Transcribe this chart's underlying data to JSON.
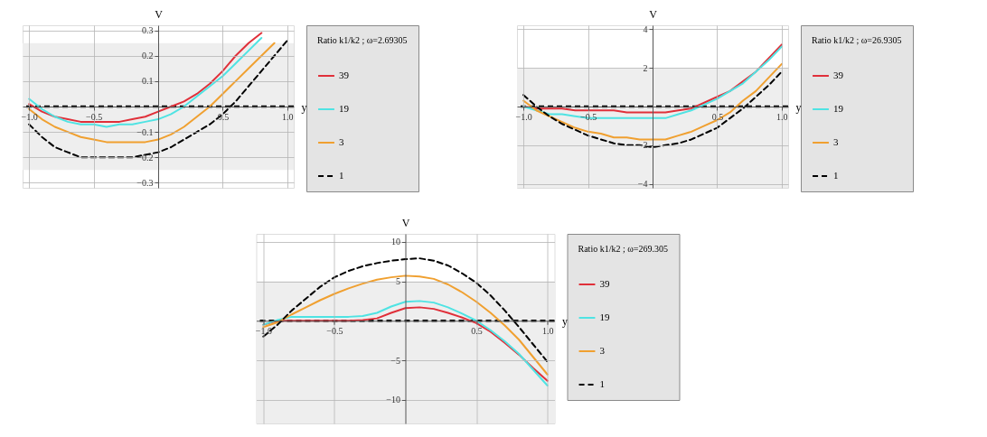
{
  "chart_data": [
    {
      "type": "line",
      "xlabel": "y",
      "ylabel": "V",
      "legend_title": "Ratio k1/k2 ; ω=2.69305",
      "legend": "right",
      "grid": true,
      "x": [
        -1.0,
        -0.9,
        -0.8,
        -0.7,
        -0.6,
        -0.5,
        -0.4,
        -0.3,
        -0.2,
        -0.1,
        0.0,
        0.1,
        0.2,
        0.3,
        0.4,
        0.5,
        0.6,
        0.7,
        0.8,
        0.9,
        1.0
      ],
      "series": [
        {
          "name": "39",
          "color": "#e0303a",
          "values": [
            0.01,
            -0.02,
            -0.04,
            -0.05,
            -0.06,
            -0.06,
            -0.06,
            -0.06,
            -0.05,
            -0.04,
            -0.02,
            0.0,
            0.02,
            0.05,
            0.09,
            0.14,
            0.2,
            0.25,
            0.29,
            null,
            null
          ]
        },
        {
          "name": "19",
          "color": "#4fe3e3",
          "values": [
            0.03,
            -0.01,
            -0.04,
            -0.06,
            -0.07,
            -0.07,
            -0.08,
            -0.07,
            -0.07,
            -0.06,
            -0.05,
            -0.03,
            0.0,
            0.04,
            0.08,
            0.12,
            0.17,
            0.22,
            0.27,
            null,
            null
          ]
        },
        {
          "name": "3",
          "color": "#f0a030",
          "values": [
            -0.01,
            -0.05,
            -0.08,
            -0.1,
            -0.12,
            -0.13,
            -0.14,
            -0.14,
            -0.14,
            -0.14,
            -0.13,
            -0.11,
            -0.08,
            -0.04,
            0.0,
            0.05,
            0.1,
            0.15,
            0.2,
            0.25,
            null
          ]
        },
        {
          "name": "1",
          "color": "#000000",
          "line_style": "dashed",
          "values": [
            -0.07,
            -0.12,
            -0.16,
            -0.18,
            -0.2,
            -0.2,
            -0.2,
            -0.2,
            -0.2,
            -0.19,
            -0.18,
            -0.16,
            -0.13,
            -0.1,
            -0.07,
            -0.03,
            0.02,
            0.08,
            0.14,
            0.2,
            0.26
          ]
        }
      ],
      "xlim": [
        -1.05,
        1.05
      ],
      "ylim": [
        -0.32,
        0.32
      ],
      "xticks": [
        {
          "value": -1,
          "label": "−1.0"
        },
        {
          "value": -0.5,
          "label": "−0.5"
        },
        {
          "value": 0.5,
          "label": "0.5"
        },
        {
          "value": 1,
          "label": "1.0"
        }
      ],
      "yticks": [
        -0.3,
        -0.2,
        -0.1,
        0.1,
        0.2,
        0.3
      ],
      "ref_lines": [
        {
          "axis": "y",
          "value": 0,
          "color": "#000000",
          "line_style": "dashed"
        }
      ],
      "bands": [
        {
          "axis": "y",
          "from": -0.25,
          "to": 0.25,
          "color": "#eeeeee"
        }
      ]
    },
    {
      "type": "line",
      "xlabel": "y",
      "ylabel": "V",
      "legend_title": "Ratio k1/k2 ; ω=26.9305",
      "legend": "right",
      "grid": true,
      "x": [
        -1.0,
        -0.9,
        -0.8,
        -0.7,
        -0.6,
        -0.5,
        -0.4,
        -0.3,
        -0.2,
        -0.1,
        0.0,
        0.1,
        0.2,
        0.3,
        0.4,
        0.5,
        0.6,
        0.7,
        0.8,
        0.9,
        1.0
      ],
      "series": [
        {
          "name": "39",
          "color": "#e0303a",
          "values": [
            0.0,
            -0.1,
            -0.1,
            -0.1,
            -0.2,
            -0.2,
            -0.2,
            -0.2,
            -0.3,
            -0.3,
            -0.3,
            -0.3,
            -0.2,
            -0.1,
            0.2,
            0.5,
            0.8,
            1.3,
            1.8,
            2.5,
            3.2
          ]
        },
        {
          "name": "19",
          "color": "#4fe3e3",
          "values": [
            0.0,
            -0.2,
            -0.4,
            -0.4,
            -0.5,
            -0.6,
            -0.6,
            -0.6,
            -0.6,
            -0.6,
            -0.6,
            -0.6,
            -0.4,
            -0.2,
            0.1,
            0.4,
            0.8,
            1.2,
            1.8,
            2.4,
            3.1
          ]
        },
        {
          "name": "3",
          "color": "#f0a030",
          "values": [
            0.3,
            -0.2,
            -0.5,
            -0.8,
            -1.1,
            -1.3,
            -1.4,
            -1.6,
            -1.6,
            -1.7,
            -1.7,
            -1.7,
            -1.5,
            -1.3,
            -1.0,
            -0.7,
            -0.3,
            0.3,
            0.8,
            1.5,
            2.2
          ]
        },
        {
          "name": "1",
          "color": "#000000",
          "line_style": "dashed",
          "values": [
            0.6,
            0.0,
            -0.5,
            -0.9,
            -1.2,
            -1.5,
            -1.7,
            -1.9,
            -2.0,
            -2.0,
            -2.1,
            -2.0,
            -1.9,
            -1.7,
            -1.4,
            -1.1,
            -0.6,
            -0.1,
            0.5,
            1.1,
            1.8
          ]
        }
      ],
      "xlim": [
        -1.05,
        1.05
      ],
      "ylim": [
        -4.2,
        4.2
      ],
      "xticks": [
        {
          "value": -1,
          "label": "−1.0"
        },
        {
          "value": -0.5,
          "label": "−0.5"
        },
        {
          "value": 0.5,
          "label": "0.5"
        },
        {
          "value": 1,
          "label": "1.0"
        }
      ],
      "yticks": [
        -4,
        -2,
        2,
        4
      ],
      "ref_lines": [
        {
          "axis": "y",
          "value": 0,
          "color": "#000000",
          "line_style": "dashed"
        }
      ],
      "bands": [
        {
          "axis": "y",
          "from": -4.2,
          "to": 2,
          "color": "#eeeeee"
        }
      ]
    },
    {
      "type": "line",
      "xlabel": "y",
      "ylabel": "V",
      "legend_title": "Ratio k1/k2 ; ω=269.305",
      "legend": "right",
      "grid": true,
      "x": [
        -1.0,
        -0.9,
        -0.8,
        -0.7,
        -0.6,
        -0.5,
        -0.4,
        -0.3,
        -0.2,
        -0.1,
        0.0,
        0.1,
        0.2,
        0.3,
        0.4,
        0.5,
        0.6,
        0.7,
        0.8,
        0.9,
        1.0
      ],
      "series": [
        {
          "name": "39",
          "color": "#e0303a",
          "values": [
            -0.5,
            0.0,
            0.0,
            0.0,
            0.0,
            0.0,
            0.0,
            0.1,
            0.3,
            1.0,
            1.6,
            1.7,
            1.5,
            1.0,
            0.4,
            -0.3,
            -1.4,
            -2.8,
            -4.3,
            -6.0,
            -7.6
          ]
        },
        {
          "name": "19",
          "color": "#4fe3e3",
          "values": [
            -0.5,
            0.1,
            0.5,
            0.5,
            0.5,
            0.5,
            0.5,
            0.6,
            1.0,
            1.8,
            2.4,
            2.5,
            2.3,
            1.7,
            0.9,
            0.0,
            -1.2,
            -2.6,
            -4.2,
            -6.2,
            -8.2
          ]
        },
        {
          "name": "3",
          "color": "#f0a030",
          "values": [
            -0.8,
            -0.2,
            0.8,
            1.7,
            2.6,
            3.4,
            4.1,
            4.7,
            5.2,
            5.5,
            5.7,
            5.6,
            5.3,
            4.6,
            3.6,
            2.4,
            1.0,
            -0.6,
            -2.4,
            -4.6,
            -6.8
          ]
        },
        {
          "name": "1",
          "color": "#000000",
          "line_style": "dashed",
          "values": [
            -2.0,
            -0.5,
            1.3,
            2.8,
            4.3,
            5.5,
            6.3,
            6.9,
            7.3,
            7.6,
            7.8,
            7.9,
            7.6,
            7.0,
            6.0,
            4.8,
            3.2,
            1.3,
            -0.8,
            -3.0,
            -5.2
          ]
        }
      ],
      "xlim": [
        -1.05,
        1.05
      ],
      "ylim": [
        -13,
        11
      ],
      "xticks": [
        {
          "value": -1,
          "label": "−1.0"
        },
        {
          "value": -0.5,
          "label": "−0.5"
        },
        {
          "value": 0.5,
          "label": "0.5"
        },
        {
          "value": 1,
          "label": "1.0"
        }
      ],
      "yticks": [
        -10,
        -5,
        5,
        10
      ],
      "ref_lines": [
        {
          "axis": "y",
          "value": 0,
          "color": "#000000",
          "line_style": "dashed"
        }
      ],
      "bands": [
        {
          "axis": "y",
          "from": -13,
          "to": 5,
          "color": "#eeeeee"
        }
      ]
    }
  ]
}
